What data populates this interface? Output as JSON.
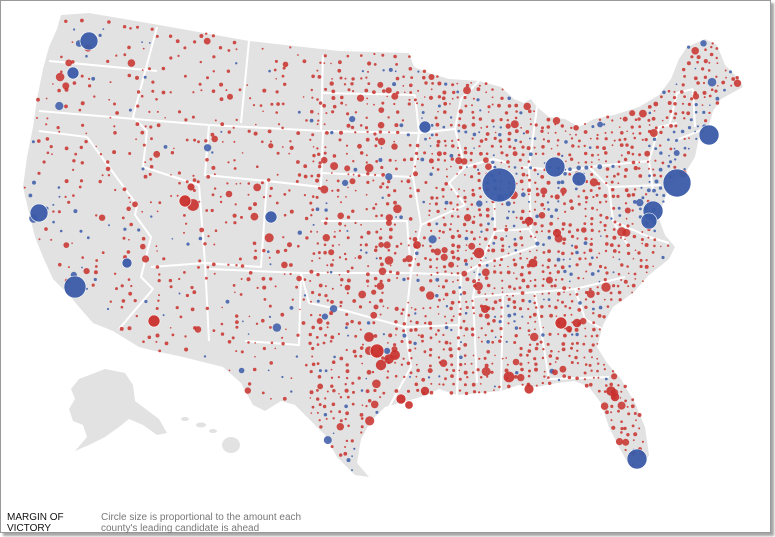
{
  "legend": {
    "title": "MARGIN OF VICTORY",
    "note": "Circle size is proportional to the amount each county's leading candidate is ahead"
  },
  "colors": {
    "land": "#e2e2e2",
    "border": "#ffffff",
    "democrat": "#3a5ba8",
    "republican": "#c9302c"
  },
  "map_data": {
    "type": "proportional-symbol-map",
    "region": "United States counties",
    "large_circles": [
      {
        "place": "Seattle",
        "party": "democrat",
        "size": "medium"
      },
      {
        "place": "Portland",
        "party": "democrat",
        "size": "small"
      },
      {
        "place": "San Francisco Bay Area",
        "party": "democrat",
        "size": "medium"
      },
      {
        "place": "Los Angeles",
        "party": "democrat",
        "size": "large"
      },
      {
        "place": "Las Vegas",
        "party": "democrat",
        "size": "small"
      },
      {
        "place": "Phoenix",
        "party": "republican",
        "size": "small"
      },
      {
        "place": "Salt Lake City area",
        "party": "republican",
        "size": "small"
      },
      {
        "place": "Denver",
        "party": "democrat",
        "size": "small"
      },
      {
        "place": "Minneapolis",
        "party": "democrat",
        "size": "small"
      },
      {
        "place": "Chicago",
        "party": "democrat",
        "size": "large"
      },
      {
        "place": "Detroit",
        "party": "democrat",
        "size": "medium"
      },
      {
        "place": "Cleveland",
        "party": "democrat",
        "size": "small"
      },
      {
        "place": "Philadelphia",
        "party": "democrat",
        "size": "medium"
      },
      {
        "place": "New York",
        "party": "democrat",
        "size": "large"
      },
      {
        "place": "Boston",
        "party": "democrat",
        "size": "medium"
      },
      {
        "place": "Washington DC",
        "party": "democrat",
        "size": "medium"
      },
      {
        "place": "Dallas-Fort Worth",
        "party": "republican",
        "size": "small"
      },
      {
        "place": "Houston",
        "party": "republican",
        "size": "small"
      },
      {
        "place": "Atlanta",
        "party": "republican",
        "size": "small"
      },
      {
        "place": "Miami",
        "party": "democrat",
        "size": "medium"
      }
    ]
  }
}
